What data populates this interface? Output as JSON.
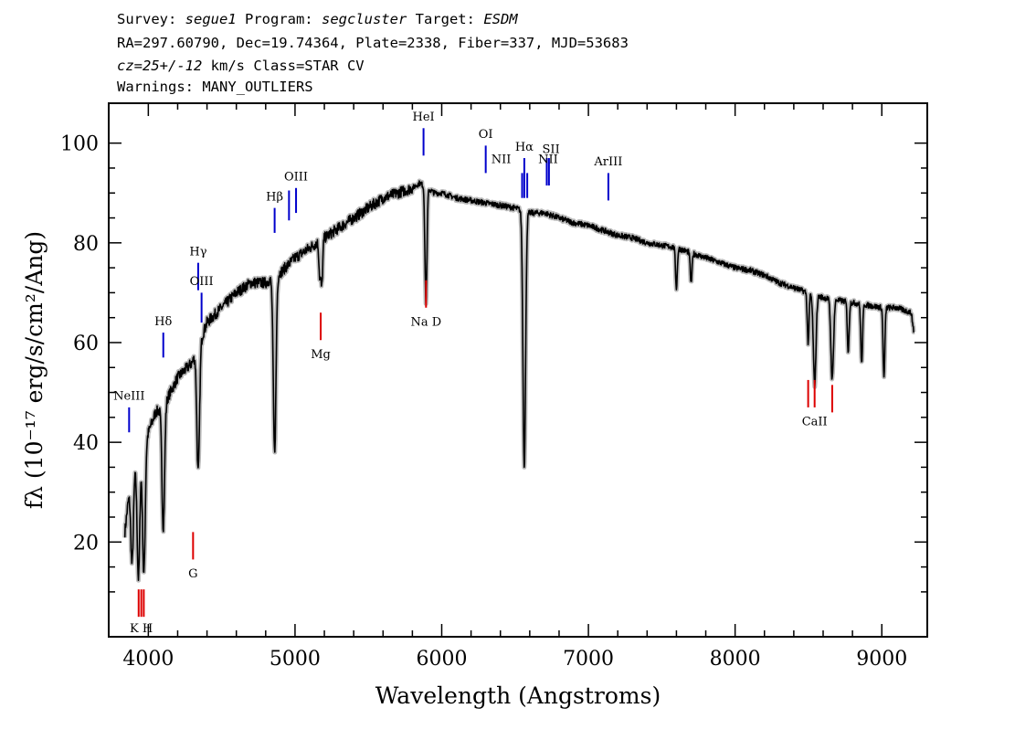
{
  "header": {
    "survey_label": "Survey: ",
    "survey": "segue1",
    "program_label": " Program: ",
    "program": "segcluster",
    "target_label": " Target: ",
    "target": "ESDM",
    "line2": "RA=297.60790, Dec=19.74364, Plate=2338, Fiber=337, MJD=53683",
    "cz": "cz=25+/-12",
    "line3_rest": " km/s Class=STAR CV",
    "line4": "Warnings: MANY_OUTLIERS"
  },
  "chart_data": {
    "type": "line",
    "xlabel": "Wavelength (Angstroms)",
    "ylabel": "fλ (10⁻¹⁷ erg/s/cm²/Ang)",
    "xlim": [
      3730,
      9310
    ],
    "ylim": [
      1,
      108
    ],
    "x_ticks": [
      4000,
      5000,
      6000,
      7000,
      8000,
      9000
    ],
    "y_ticks": [
      20,
      40,
      60,
      80,
      100
    ],
    "grid": false,
    "legend": "none",
    "colors": {
      "spectrum": "#000000",
      "error_band": "#bbbbbb",
      "emission": "#0000cc",
      "absorption": "#dd0000"
    },
    "series": [
      {
        "continuum": [
          [
            3840,
            22
          ],
          [
            3880,
            33
          ],
          [
            3950,
            38
          ],
          [
            4000,
            42
          ],
          [
            4050,
            46
          ],
          [
            4100,
            47
          ],
          [
            4200,
            53
          ],
          [
            4300,
            56
          ],
          [
            4400,
            64
          ],
          [
            4500,
            67
          ],
          [
            4600,
            70
          ],
          [
            4700,
            72
          ],
          [
            4800,
            72
          ],
          [
            4900,
            74
          ],
          [
            5000,
            77
          ],
          [
            5100,
            79
          ],
          [
            5200,
            81
          ],
          [
            5300,
            83
          ],
          [
            5400,
            85
          ],
          [
            5500,
            87
          ],
          [
            5600,
            89
          ],
          [
            5700,
            90
          ],
          [
            5800,
            91
          ],
          [
            5850,
            92
          ],
          [
            5950,
            90
          ],
          [
            6000,
            90
          ],
          [
            6100,
            89
          ],
          [
            6200,
            88.5
          ],
          [
            6300,
            88
          ],
          [
            6400,
            87.5
          ],
          [
            6500,
            87
          ],
          [
            6600,
            86
          ],
          [
            6700,
            86
          ],
          [
            6800,
            85
          ],
          [
            6900,
            84
          ],
          [
            7000,
            83.5
          ],
          [
            7100,
            82.5
          ],
          [
            7200,
            81.5
          ],
          [
            7300,
            81
          ],
          [
            7400,
            80
          ],
          [
            7500,
            79.5
          ],
          [
            7600,
            79
          ],
          [
            7700,
            78
          ],
          [
            7800,
            77
          ],
          [
            7900,
            76
          ],
          [
            8000,
            75
          ],
          [
            8100,
            74.5
          ],
          [
            8200,
            73.5
          ],
          [
            8300,
            72
          ],
          [
            8400,
            71
          ],
          [
            8500,
            70
          ],
          [
            8600,
            69
          ],
          [
            8700,
            68.5
          ],
          [
            8800,
            68
          ],
          [
            8900,
            67.5
          ],
          [
            9000,
            67
          ],
          [
            9100,
            67
          ],
          [
            9200,
            66
          ],
          [
            9220,
            62
          ]
        ],
        "absorption_lines": [
          [
            3889,
            18
          ],
          [
            3933,
            24
          ],
          [
            3970,
            26
          ],
          [
            4102,
            24
          ],
          [
            4340,
            25
          ],
          [
            4861,
            35
          ],
          [
            5169,
            7
          ],
          [
            5183,
            9
          ],
          [
            5890,
            14
          ],
          [
            5896,
            12
          ],
          [
            6563,
            51
          ],
          [
            7600,
            8
          ],
          [
            7700,
            6
          ],
          [
            8498,
            10
          ],
          [
            8542,
            18
          ],
          [
            8662,
            16
          ],
          [
            8771,
            10
          ],
          [
            8863,
            12
          ],
          [
            9015,
            14
          ]
        ]
      }
    ],
    "line_marks": [
      {
        "label": "NeIII",
        "x": 3869,
        "y0": 42,
        "y1": 47,
        "color": "#0000cc",
        "label_y": 48.5
      },
      {
        "label": "Hδ",
        "x": 4102,
        "y0": 57,
        "y1": 62,
        "color": "#0000cc",
        "label_y": 63.5
      },
      {
        "label": "Hγ",
        "x": 4340,
        "y0": 70.5,
        "y1": 76,
        "color": "#0000cc",
        "label_y": 77.5
      },
      {
        "label": "OIII",
        "x": 4363,
        "y0": 64,
        "y1": 70,
        "color": "#0000cc",
        "label_y": 71.5
      },
      {
        "label": "Hβ",
        "x": 4861,
        "y0": 82,
        "y1": 87,
        "color": "#0000cc",
        "label_y": 88.5
      },
      {
        "label": "",
        "x": 4959,
        "y0": 84.5,
        "y1": 90.5,
        "color": "#0000cc"
      },
      {
        "label": "OIII",
        "x": 5007,
        "y0": 86,
        "y1": 91,
        "color": "#0000cc",
        "label_y": 92.5
      },
      {
        "label": "HeI",
        "x": 5876,
        "y0": 97.5,
        "y1": 103,
        "color": "#0000cc",
        "label_y": 104.5
      },
      {
        "label": "OI",
        "x": 6300,
        "y0": 94,
        "y1": 99.5,
        "color": "#0000cc",
        "label_y": 101
      },
      {
        "label": "NII",
        "x": 6548,
        "y0": 89,
        "y1": 94,
        "color": "#0000cc",
        "label_x": 6405,
        "label_y": 96
      },
      {
        "label": "Hα",
        "x": 6563,
        "y0": 89,
        "y1": 97,
        "color": "#0000cc",
        "label_y": 98.5
      },
      {
        "label": "",
        "x": 6583,
        "y0": 89,
        "y1": 94,
        "color": "#0000cc"
      },
      {
        "label": "NII",
        "x": 6716,
        "y0": 91.5,
        "y1": 97,
        "color": "#0000cc",
        "label_x": 6725,
        "label_y": 96
      },
      {
        "label": "SII",
        "x": 6731,
        "y0": 91.5,
        "y1": 97,
        "color": "#0000cc",
        "label_x": 6745,
        "label_y": 98
      },
      {
        "label": "ArIII",
        "x": 7136,
        "y0": 88.5,
        "y1": 94,
        "color": "#0000cc",
        "label_y": 95.5
      },
      {
        "label": "",
        "x": 3934,
        "y0": 5,
        "y1": 10.5,
        "color": "#dd0000"
      },
      {
        "label": "K H",
        "x": 3952,
        "y0": 5,
        "y1": 10.5,
        "color": "#dd0000",
        "label_y": 3,
        "label_below": true
      },
      {
        "label": "",
        "x": 3969,
        "y0": 5,
        "y1": 10.5,
        "color": "#dd0000"
      },
      {
        "label": "G",
        "x": 4305,
        "y0": 16.5,
        "y1": 22,
        "color": "#dd0000",
        "label_y": 14,
        "label_below": true
      },
      {
        "label": "Mg",
        "x": 5175,
        "y0": 60.5,
        "y1": 66,
        "color": "#dd0000",
        "label_y": 58,
        "label_below": true
      },
      {
        "label": "Na D",
        "x": 5893,
        "y0": 67,
        "y1": 72.5,
        "color": "#dd0000",
        "label_y": 64.5,
        "label_below": true
      },
      {
        "label": "",
        "x": 8498,
        "y0": 47,
        "y1": 52.5,
        "color": "#dd0000"
      },
      {
        "label": "CaII",
        "x": 8542,
        "y0": 47,
        "y1": 52.5,
        "color": "#dd0000",
        "label_y": 44.5,
        "label_below": true
      },
      {
        "label": "",
        "x": 8662,
        "y0": 46,
        "y1": 51.5,
        "color": "#dd0000"
      }
    ]
  }
}
